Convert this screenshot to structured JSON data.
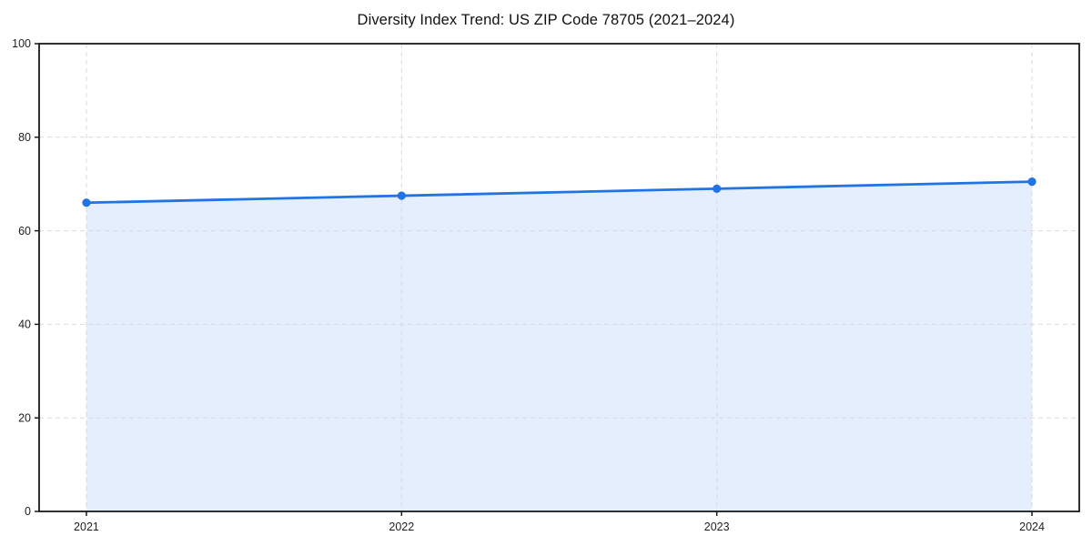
{
  "page": {
    "background": "#ffffff"
  },
  "chart_data": {
    "type": "area",
    "title": "Diversity Index Trend: US ZIP Code 78705 (2021–2024)",
    "x": [
      2021,
      2022,
      2023,
      2024
    ],
    "x_tick_labels": [
      "2021",
      "2022",
      "2023",
      "2024"
    ],
    "series": [
      {
        "name": "Diversity Index",
        "values": [
          66,
          67.5,
          69,
          70.5
        ]
      }
    ],
    "xlabel": "",
    "ylabel": "",
    "xlim": [
      2020.85,
      2024.15
    ],
    "ylim": [
      0,
      100
    ],
    "yticks": [
      0,
      20,
      40,
      60,
      80,
      100
    ],
    "grid": true,
    "grid_style": "dashed",
    "legend_position": "none",
    "colors": {
      "line": "#2273e3",
      "marker": "#2273e3",
      "area_fill": "rgba(34,115,227,0.12)",
      "grid": "#d9d9d9",
      "axis": "#1a1a1a",
      "tick_label": "#1f1f1f",
      "title": "#111111",
      "background": "#ffffff"
    }
  }
}
